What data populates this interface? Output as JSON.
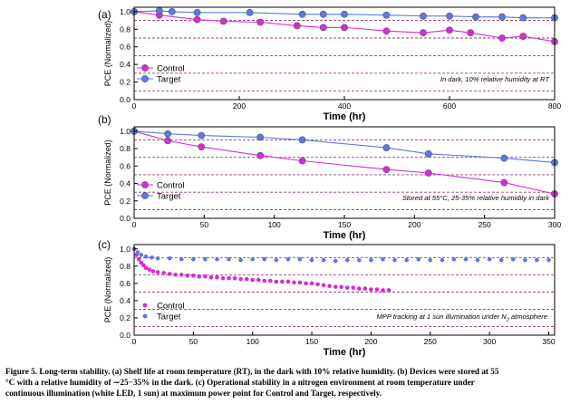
{
  "chart_data": [
    {
      "type": "line",
      "panel_label": "(a)",
      "xlabel": "Time (hr)",
      "ylabel": "PCE (Normalized)",
      "xlim": [
        0,
        800
      ],
      "ylim": [
        0.0,
        1.05
      ],
      "xticks": [
        "0",
        "200",
        "400",
        "600",
        "800"
      ],
      "yticks": [
        "0.0",
        "0.2",
        "0.4",
        "0.6",
        "0.8",
        "1.0"
      ],
      "annotation": "In dark, 10% relative humidity at RT",
      "legend_position": "left-middle",
      "reference_lines": [
        0.1,
        0.3,
        0.5,
        0.7,
        0.9
      ],
      "series": [
        {
          "name": "Control",
          "color": "#d62bd6",
          "x": [
            0,
            48,
            120,
            170,
            240,
            310,
            360,
            400,
            480,
            550,
            600,
            640,
            700,
            740,
            800
          ],
          "y": [
            1.0,
            0.96,
            0.91,
            0.89,
            0.88,
            0.84,
            0.82,
            0.82,
            0.78,
            0.76,
            0.79,
            0.76,
            0.7,
            0.72,
            0.66
          ]
        },
        {
          "name": "Target",
          "color": "#5a78e6",
          "x": [
            0,
            48,
            72,
            120,
            220,
            320,
            360,
            400,
            480,
            550,
            600,
            650,
            700,
            740,
            800
          ],
          "y": [
            1.0,
            1.01,
            1.0,
            0.99,
            0.99,
            0.97,
            0.97,
            0.97,
            0.96,
            0.95,
            0.95,
            0.94,
            0.94,
            0.93,
            0.93
          ]
        }
      ]
    },
    {
      "type": "line",
      "panel_label": "(b)",
      "xlabel": "Time (hr)",
      "ylabel": "PCE (Normalized)",
      "xlim": [
        0,
        300
      ],
      "ylim": [
        0.0,
        1.05
      ],
      "xticks": [
        "0",
        "50",
        "100",
        "150",
        "200",
        "250",
        "300"
      ],
      "yticks": [
        "0.0",
        "0.2",
        "0.4",
        "0.6",
        "0.8",
        "1.0"
      ],
      "annotation": "Stored at 55°C, 25-35% relative humidity in dark",
      "legend_position": "left-bottom",
      "reference_lines": [
        0.1,
        0.3,
        0.5,
        0.7,
        0.9
      ],
      "series": [
        {
          "name": "Control",
          "color": "#d62bd6",
          "x": [
            0,
            24,
            48,
            90,
            120,
            180,
            210,
            264,
            300
          ],
          "y": [
            1.0,
            0.89,
            0.82,
            0.72,
            0.66,
            0.56,
            0.52,
            0.41,
            0.28
          ]
        },
        {
          "name": "Target",
          "color": "#5a78e6",
          "x": [
            0,
            24,
            48,
            90,
            120,
            180,
            210,
            264,
            300
          ],
          "y": [
            1.0,
            0.97,
            0.95,
            0.93,
            0.9,
            0.81,
            0.74,
            0.69,
            0.64
          ]
        }
      ]
    },
    {
      "type": "scatter",
      "panel_label": "(c)",
      "xlabel": "Time (hr)",
      "ylabel": "PCE (Normalized)",
      "xlim": [
        0,
        355
      ],
      "ylim": [
        0.0,
        1.05
      ],
      "xticks": [
        "0",
        "50",
        "100",
        "150",
        "200",
        "250",
        "300",
        "350"
      ],
      "yticks": [
        "0.0",
        "0.2",
        "0.4",
        "0.6",
        "0.8",
        "1.0"
      ],
      "annotation_prefix": "MPP tracking at 1 sun illumination under N",
      "annotation_subscript": "2",
      "annotation_suffix": " atmosphere",
      "legend_position": "left-bottom",
      "reference_lines": [
        0.1,
        0.3,
        0.5,
        0.7,
        0.9
      ],
      "series": [
        {
          "name": "Control",
          "color": "#d62bd6",
          "x": [
            0,
            2,
            4,
            6,
            8,
            10,
            13,
            16,
            20,
            25,
            30,
            35,
            40,
            45,
            50,
            55,
            60,
            65,
            70,
            75,
            80,
            85,
            90,
            95,
            100,
            105,
            110,
            115,
            120,
            125,
            130,
            135,
            140,
            145,
            150,
            155,
            160,
            165,
            170,
            175,
            180,
            185,
            190,
            195,
            200,
            205,
            210,
            215
          ],
          "y": [
            1.0,
            0.93,
            0.88,
            0.84,
            0.81,
            0.78,
            0.76,
            0.74,
            0.73,
            0.72,
            0.71,
            0.7,
            0.7,
            0.69,
            0.69,
            0.68,
            0.68,
            0.67,
            0.67,
            0.66,
            0.66,
            0.66,
            0.65,
            0.65,
            0.64,
            0.64,
            0.63,
            0.63,
            0.62,
            0.62,
            0.62,
            0.61,
            0.61,
            0.6,
            0.6,
            0.59,
            0.58,
            0.57,
            0.56,
            0.56,
            0.55,
            0.55,
            0.54,
            0.54,
            0.53,
            0.53,
            0.52,
            0.52
          ]
        },
        {
          "name": "Target",
          "color": "#5a78e6",
          "x": [
            0,
            3,
            6,
            10,
            15,
            20,
            30,
            40,
            50,
            60,
            70,
            80,
            90,
            100,
            110,
            120,
            130,
            140,
            150,
            160,
            170,
            180,
            190,
            200,
            210,
            220,
            230,
            240,
            250,
            260,
            270,
            280,
            290,
            300,
            310,
            320,
            330,
            340,
            350
          ],
          "y": [
            1.0,
            0.96,
            0.93,
            0.91,
            0.9,
            0.89,
            0.89,
            0.88,
            0.88,
            0.88,
            0.88,
            0.88,
            0.87,
            0.88,
            0.88,
            0.87,
            0.88,
            0.88,
            0.87,
            0.87,
            0.86,
            0.87,
            0.87,
            0.87,
            0.88,
            0.87,
            0.87,
            0.88,
            0.87,
            0.87,
            0.88,
            0.88,
            0.87,
            0.88,
            0.87,
            0.88,
            0.87,
            0.87,
            0.87
          ]
        }
      ]
    }
  ],
  "caption": {
    "line1": "Figure 5. Long-term stability. (a) Shelf life at room temperature (RT), in the dark with 10% relative humidity. (b) Devices were stored at 55",
    "line2": "°C with a relative humidity of ∼25−35% in the dark. (c) Operational stability in a nitrogen environment at room temperature under",
    "line3": "continuous illumination (white LED, 1 sun) at maximum power point for Control and Target, respectively."
  }
}
